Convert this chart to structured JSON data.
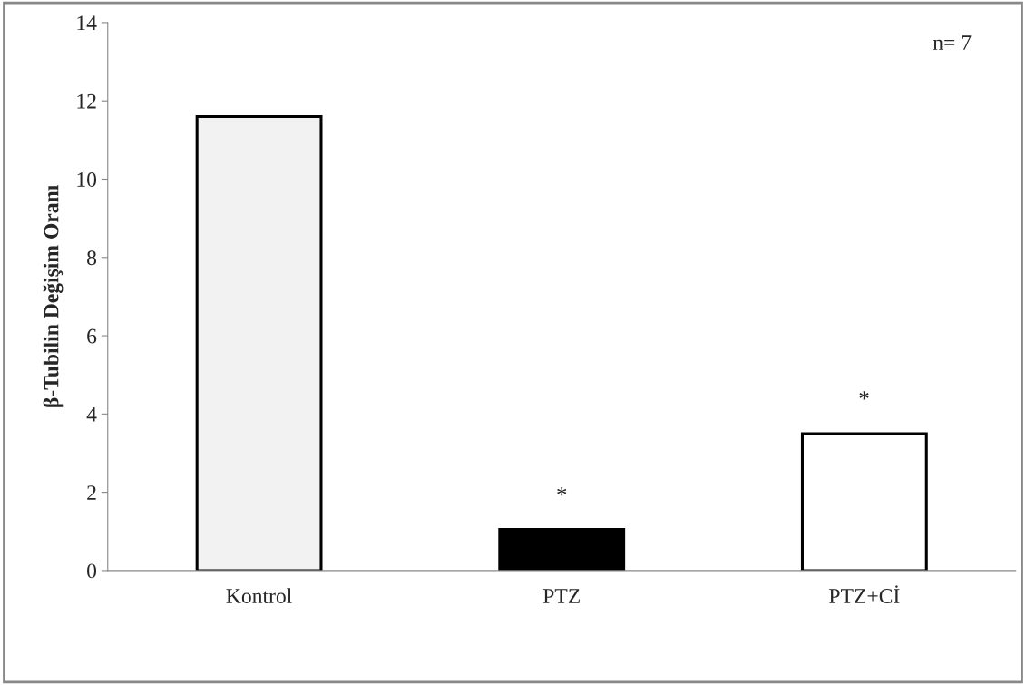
{
  "chart_data": {
    "type": "bar",
    "ylabel": "β-Tubilin Değişim Oranı",
    "categories": [
      "Kontrol",
      "PTZ",
      "PTZ+Cİ"
    ],
    "values": [
      11.6,
      1.05,
      3.5
    ],
    "colors": [
      "#f2f2f2",
      "#000000",
      "#ffffff"
    ],
    "ylim": [
      0,
      14
    ],
    "yticks": [
      0,
      2,
      4,
      6,
      8,
      10,
      12,
      14
    ],
    "grid": false,
    "legend": false,
    "annotations": [
      "*",
      "*",
      "n= 7"
    ]
  }
}
